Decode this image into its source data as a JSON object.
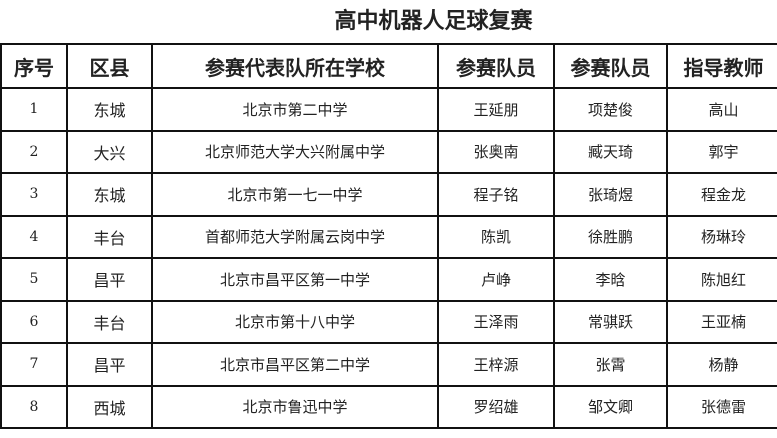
{
  "title": "高中机器人足球复赛",
  "headers": [
    "序号",
    "区县",
    "参赛代表队所在学校",
    "参赛队员",
    "参赛队员",
    "指导教师"
  ],
  "rows": [
    [
      "1",
      "东城",
      "北京市第二中学",
      "王延朋",
      "项楚俊",
      "高山"
    ],
    [
      "2",
      "大兴",
      "北京师范大学大兴附属中学",
      "张奥南",
      "臧天琦",
      "郭宇"
    ],
    [
      "3",
      "东城",
      "北京市第一七一中学",
      "程子铭",
      "张琦煜",
      "程金龙"
    ],
    [
      "4",
      "丰台",
      "首都师范大学附属云岗中学",
      "陈凯",
      "徐胜鹏",
      "杨琳玲"
    ],
    [
      "5",
      "昌平",
      "北京市昌平区第一中学",
      "卢峥",
      "李晗",
      "陈旭红"
    ],
    [
      "6",
      "丰台",
      "北京市第十八中学",
      "王泽雨",
      "常骐跃",
      "王亚楠"
    ],
    [
      "7",
      "昌平",
      "北京市昌平区第二中学",
      "王梓源",
      "张霄",
      "杨静"
    ],
    [
      "8",
      "西城",
      "北京市鲁迅中学",
      "罗绍雄",
      "邹文卿",
      "张德雷"
    ]
  ]
}
